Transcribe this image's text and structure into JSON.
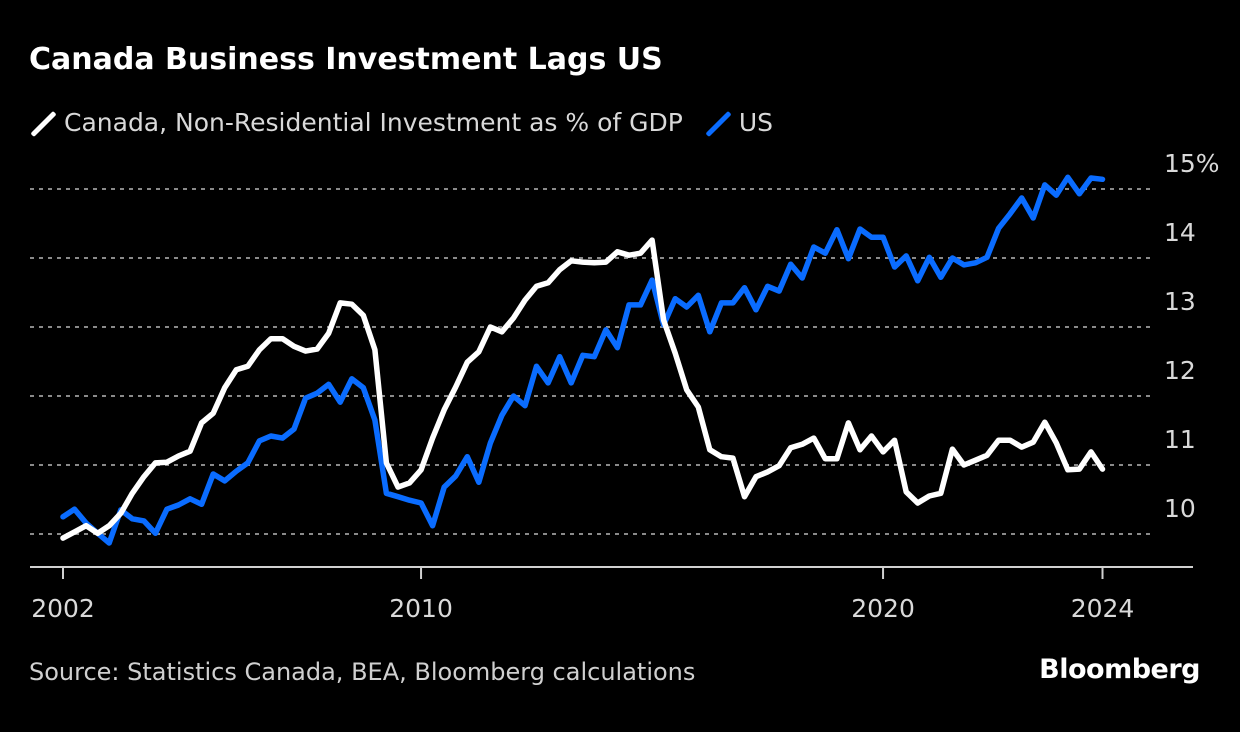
{
  "chart_data": {
    "type": "line",
    "title": "Canada Business Investment Lags US",
    "xlabel": "",
    "ylabel": "",
    "ylim": [
      10,
      15
    ],
    "y_unit": "%",
    "yticks": [
      10,
      11,
      12,
      13,
      14,
      15
    ],
    "ytick_labels": [
      "10",
      "11",
      "12",
      "13",
      "14",
      "15%"
    ],
    "xticks": [
      2002,
      2009.75,
      2019.75,
      2024.5
    ],
    "xtick_labels": [
      "2002",
      "2010",
      "2020",
      "2024"
    ],
    "grid": "horizontal dashed",
    "legend_placement": "top-left",
    "series": [
      {
        "name": "Canada, Non-Residential Investment as % of GDP",
        "color": "#ffffff",
        "points": [
          [
            2002.0,
            9.94
          ],
          [
            2002.25,
            10.03
          ],
          [
            2002.5,
            10.12
          ],
          [
            2002.75,
            10.01
          ],
          [
            2003.0,
            10.12
          ],
          [
            2003.25,
            10.3
          ],
          [
            2003.5,
            10.59
          ],
          [
            2003.75,
            10.83
          ],
          [
            2004.0,
            11.03
          ],
          [
            2004.25,
            11.04
          ],
          [
            2004.5,
            11.13
          ],
          [
            2004.75,
            11.2
          ],
          [
            2005.0,
            11.61
          ],
          [
            2005.25,
            11.75
          ],
          [
            2005.5,
            12.12
          ],
          [
            2005.75,
            12.38
          ],
          [
            2006.0,
            12.43
          ],
          [
            2006.25,
            12.67
          ],
          [
            2006.5,
            12.83
          ],
          [
            2006.75,
            12.83
          ],
          [
            2007.0,
            12.72
          ],
          [
            2007.25,
            12.65
          ],
          [
            2007.5,
            12.68
          ],
          [
            2007.75,
            12.91
          ],
          [
            2008.0,
            13.35
          ],
          [
            2008.25,
            13.33
          ],
          [
            2008.5,
            13.17
          ],
          [
            2008.75,
            12.67
          ],
          [
            2009.0,
            11.03
          ],
          [
            2009.25,
            10.68
          ],
          [
            2009.5,
            10.74
          ],
          [
            2009.75,
            10.93
          ],
          [
            2010.0,
            11.39
          ],
          [
            2010.25,
            11.8
          ],
          [
            2010.5,
            12.13
          ],
          [
            2010.75,
            12.49
          ],
          [
            2011.0,
            12.64
          ],
          [
            2011.25,
            13.0
          ],
          [
            2011.5,
            12.93
          ],
          [
            2011.75,
            13.13
          ],
          [
            2012.0,
            13.39
          ],
          [
            2012.25,
            13.59
          ],
          [
            2012.5,
            13.64
          ],
          [
            2012.75,
            13.83
          ],
          [
            2013.0,
            13.96
          ],
          [
            2013.25,
            13.94
          ],
          [
            2013.5,
            13.93
          ],
          [
            2013.75,
            13.94
          ],
          [
            2014.0,
            14.09
          ],
          [
            2014.25,
            14.04
          ],
          [
            2014.5,
            14.07
          ],
          [
            2014.75,
            14.26
          ],
          [
            2015.0,
            13.1
          ],
          [
            2015.25,
            12.62
          ],
          [
            2015.5,
            12.09
          ],
          [
            2015.75,
            11.84
          ],
          [
            2016.0,
            11.22
          ],
          [
            2016.25,
            11.12
          ],
          [
            2016.5,
            11.1
          ],
          [
            2016.75,
            10.54
          ],
          [
            2017.0,
            10.83
          ],
          [
            2017.25,
            10.9
          ],
          [
            2017.5,
            10.99
          ],
          [
            2017.75,
            11.25
          ],
          [
            2018.0,
            11.3
          ],
          [
            2018.25,
            11.39
          ],
          [
            2018.5,
            11.09
          ],
          [
            2018.75,
            11.09
          ],
          [
            2019.0,
            11.61
          ],
          [
            2019.25,
            11.22
          ],
          [
            2019.5,
            11.42
          ],
          [
            2019.75,
            11.19
          ],
          [
            2020.0,
            11.36
          ],
          [
            2020.25,
            10.61
          ],
          [
            2020.5,
            10.45
          ],
          [
            2020.75,
            10.55
          ],
          [
            2021.0,
            10.59
          ],
          [
            2021.25,
            11.23
          ],
          [
            2021.5,
            11.0
          ],
          [
            2021.75,
            11.07
          ],
          [
            2022.0,
            11.14
          ],
          [
            2022.25,
            11.36
          ],
          [
            2022.5,
            11.36
          ],
          [
            2022.75,
            11.26
          ],
          [
            2023.0,
            11.33
          ],
          [
            2023.25,
            11.62
          ],
          [
            2023.5,
            11.32
          ],
          [
            2023.75,
            10.93
          ],
          [
            2024.0,
            10.94
          ],
          [
            2024.25,
            11.19
          ],
          [
            2024.5,
            10.94
          ]
        ]
      },
      {
        "name": "US",
        "color": "#0a6cff",
        "points": [
          [
            2002.0,
            10.25
          ],
          [
            2002.25,
            10.36
          ],
          [
            2002.5,
            10.16
          ],
          [
            2002.75,
            10.01
          ],
          [
            2003.0,
            9.87
          ],
          [
            2003.25,
            10.35
          ],
          [
            2003.5,
            10.22
          ],
          [
            2003.75,
            10.19
          ],
          [
            2004.0,
            10.01
          ],
          [
            2004.25,
            10.36
          ],
          [
            2004.5,
            10.42
          ],
          [
            2004.75,
            10.51
          ],
          [
            2005.0,
            10.43
          ],
          [
            2005.25,
            10.87
          ],
          [
            2005.5,
            10.77
          ],
          [
            2005.75,
            10.91
          ],
          [
            2006.0,
            11.03
          ],
          [
            2006.25,
            11.35
          ],
          [
            2006.5,
            11.42
          ],
          [
            2006.75,
            11.39
          ],
          [
            2007.0,
            11.52
          ],
          [
            2007.25,
            11.97
          ],
          [
            2007.5,
            12.04
          ],
          [
            2007.75,
            12.17
          ],
          [
            2008.0,
            11.91
          ],
          [
            2008.25,
            12.25
          ],
          [
            2008.5,
            12.12
          ],
          [
            2008.75,
            11.65
          ],
          [
            2009.0,
            10.59
          ],
          [
            2009.25,
            10.54
          ],
          [
            2009.5,
            10.49
          ],
          [
            2009.75,
            10.45
          ],
          [
            2010.0,
            10.12
          ],
          [
            2010.25,
            10.68
          ],
          [
            2010.5,
            10.84
          ],
          [
            2010.75,
            11.12
          ],
          [
            2011.0,
            10.75
          ],
          [
            2011.25,
            11.32
          ],
          [
            2011.5,
            11.72
          ],
          [
            2011.75,
            12.0
          ],
          [
            2012.0,
            11.86
          ],
          [
            2012.25,
            12.43
          ],
          [
            2012.5,
            12.19
          ],
          [
            2012.75,
            12.57
          ],
          [
            2013.0,
            12.19
          ],
          [
            2013.25,
            12.59
          ],
          [
            2013.5,
            12.57
          ],
          [
            2013.75,
            12.96
          ],
          [
            2014.0,
            12.7
          ],
          [
            2014.25,
            13.32
          ],
          [
            2014.5,
            13.32
          ],
          [
            2014.75,
            13.68
          ],
          [
            2015.0,
            13.03
          ],
          [
            2015.25,
            13.41
          ],
          [
            2015.5,
            13.29
          ],
          [
            2015.75,
            13.46
          ],
          [
            2016.0,
            12.93
          ],
          [
            2016.25,
            13.35
          ],
          [
            2016.5,
            13.35
          ],
          [
            2016.75,
            13.57
          ],
          [
            2017.0,
            13.25
          ],
          [
            2017.25,
            13.59
          ],
          [
            2017.5,
            13.52
          ],
          [
            2017.75,
            13.91
          ],
          [
            2018.0,
            13.71
          ],
          [
            2018.25,
            14.16
          ],
          [
            2018.5,
            14.07
          ],
          [
            2018.75,
            14.41
          ],
          [
            2019.0,
            13.99
          ],
          [
            2019.25,
            14.42
          ],
          [
            2019.5,
            14.3
          ],
          [
            2019.75,
            14.3
          ],
          [
            2020.0,
            13.87
          ],
          [
            2020.25,
            14.03
          ],
          [
            2020.5,
            13.67
          ],
          [
            2020.75,
            14.01
          ],
          [
            2021.0,
            13.72
          ],
          [
            2021.25,
            14.0
          ],
          [
            2021.5,
            13.9
          ],
          [
            2021.75,
            13.93
          ],
          [
            2022.0,
            14.01
          ],
          [
            2022.25,
            14.43
          ],
          [
            2022.5,
            14.64
          ],
          [
            2022.75,
            14.87
          ],
          [
            2023.0,
            14.58
          ],
          [
            2023.25,
            15.06
          ],
          [
            2023.5,
            14.91
          ],
          [
            2023.75,
            15.17
          ],
          [
            2024.0,
            14.93
          ],
          [
            2024.25,
            15.16
          ],
          [
            2024.5,
            15.14
          ]
        ]
      }
    ]
  },
  "legend": {
    "canada_label": "Canada, Non-Residential Investment as % of GDP",
    "us_label": "US"
  },
  "source": "Source: Statistics Canada, BEA, Bloomberg calculations",
  "brand": "Bloomberg"
}
